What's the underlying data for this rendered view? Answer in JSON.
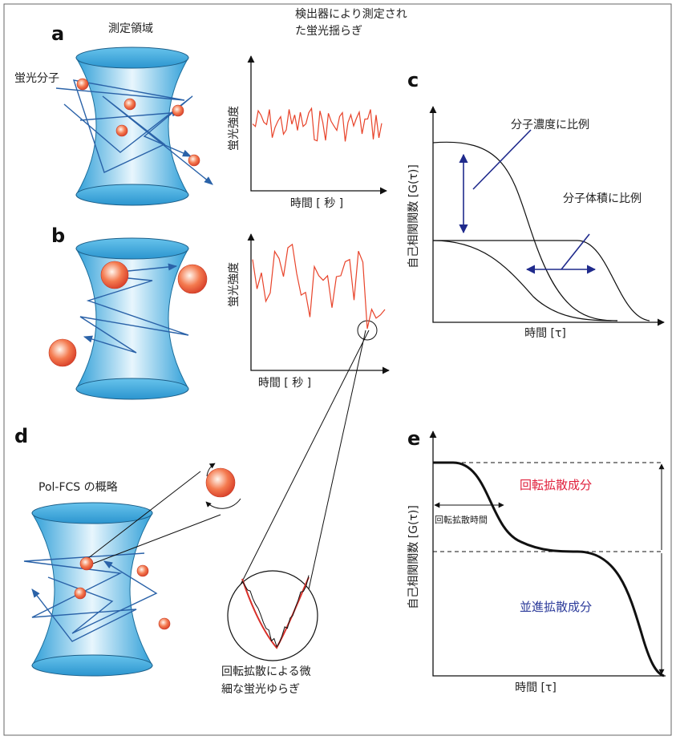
{
  "panels": {
    "a": {
      "label": "a",
      "region_label": "測定領域",
      "molecule_label": "蛍光分子",
      "graph_title": [
        "検出器により測定され",
        "た蛍光揺らぎ"
      ],
      "y_label": "蛍光強度",
      "x_label": "時間 [ 秒 ]"
    },
    "b": {
      "label": "b",
      "y_label": "蛍光強度",
      "x_label": "時間 [ 秒 ]"
    },
    "c": {
      "label": "c",
      "concentration_note": "分子濃度に比例",
      "volume_note": "分子体積に比例",
      "y_label": "自己相関関数 [G(τ)]",
      "x_label": "時間 [τ]"
    },
    "d": {
      "label": "d",
      "title": "Pol-FCS の概略",
      "zoom_caption": [
        "回転拡散による微",
        "細な蛍光ゆらぎ"
      ]
    },
    "e": {
      "label": "e",
      "rotational_component": "回転拡散成分",
      "rotational_time": "回転拡散時間",
      "translational_component": "並進拡散成分",
      "y_label": "自己相関関数 [G(τ)]",
      "x_label": "時間 [τ]"
    }
  }
}
